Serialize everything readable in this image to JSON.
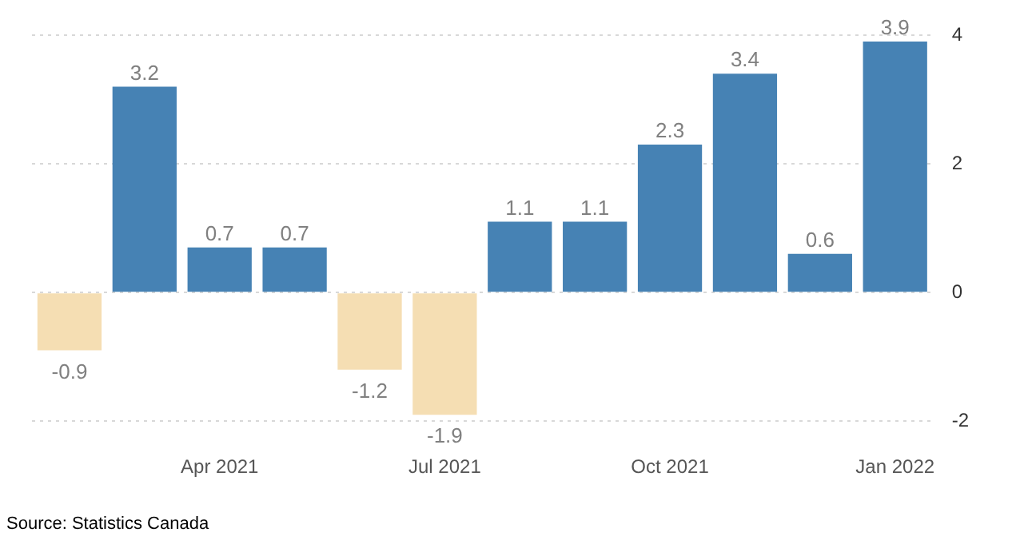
{
  "chart_data": {
    "type": "bar",
    "categories": [
      null,
      null,
      "Apr 2021",
      null,
      null,
      "Jul 2021",
      null,
      null,
      "Oct 2021",
      null,
      null,
      "Jan 2022"
    ],
    "values": [
      -0.9,
      3.2,
      0.7,
      0.7,
      -1.2,
      -1.9,
      1.1,
      1.1,
      2.3,
      3.4,
      0.6,
      3.9
    ],
    "colors": [
      "#f5deb3",
      "#4682b4",
      "#4682b4",
      "#4682b4",
      "#f5deb3",
      "#f5deb3",
      "#4682b4",
      "#4682b4",
      "#4682b4",
      "#4682b4",
      "#4682b4",
      "#4682b4"
    ],
    "ylim": [
      -2,
      4
    ],
    "yticks": [
      -2,
      0,
      2,
      4
    ],
    "grid": "y",
    "data_labels": true,
    "legend": false,
    "annotations": [
      "Source: Statistics Canada"
    ]
  }
}
